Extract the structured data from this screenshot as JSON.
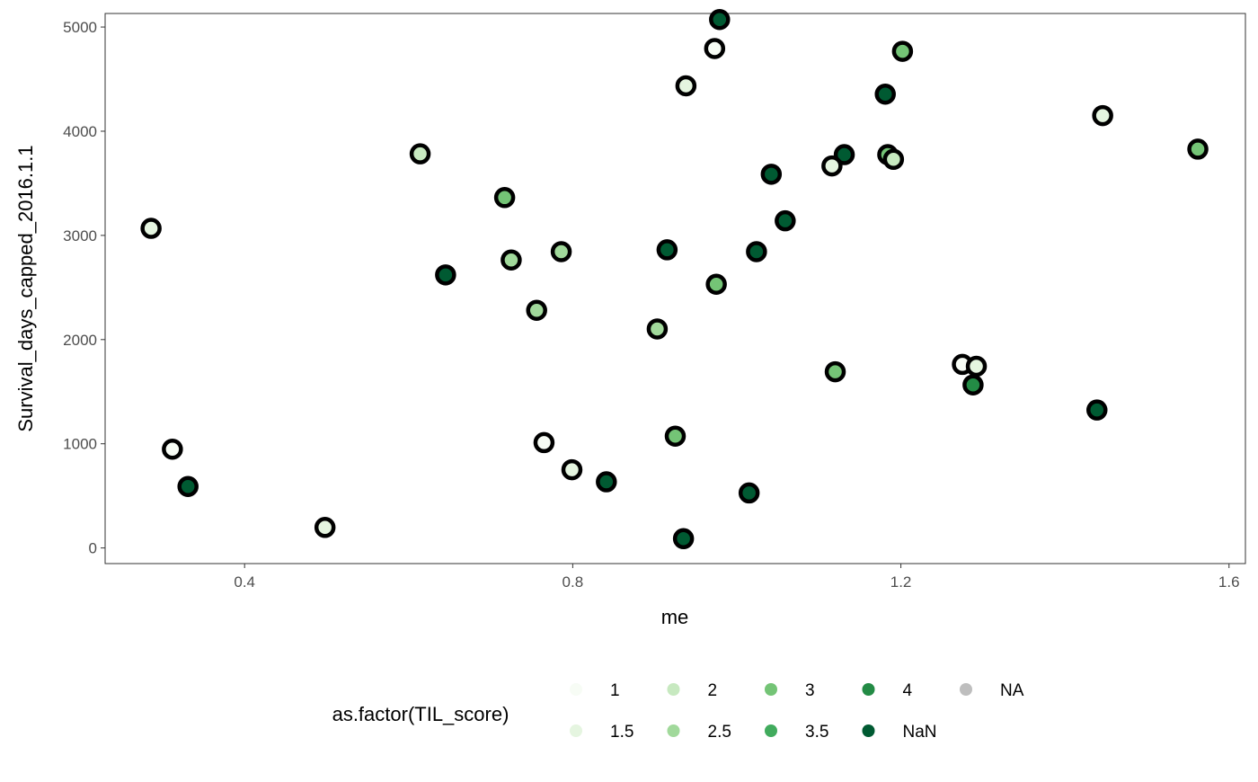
{
  "chart_data": {
    "type": "scatter",
    "xlabel": "me",
    "ylabel": "Survival_days_capped_2016.1.1",
    "xlim": [
      0.23,
      1.62
    ],
    "ylim": [
      -150,
      5130
    ],
    "xticks": [
      0.4,
      0.8,
      1.2,
      1.6
    ],
    "xtick_labels": [
      "0.4",
      "0.8",
      "1.2",
      "1.6"
    ],
    "yticks": [
      0,
      1000,
      2000,
      3000,
      4000,
      5000
    ],
    "ytick_labels": [
      "0",
      "1000",
      "2000",
      "3000",
      "4000",
      "5000"
    ],
    "grid": false,
    "legend": {
      "title": "as.factor(TIL_score)",
      "placement": "bottom",
      "entries": [
        {
          "label": "1",
          "color": "#F7FCF5"
        },
        {
          "label": "1.5",
          "color": "#E5F5E0"
        },
        {
          "label": "2",
          "color": "#C7E9C0"
        },
        {
          "label": "2.5",
          "color": "#A1D99B"
        },
        {
          "label": "3",
          "color": "#74C476"
        },
        {
          "label": "3.5",
          "color": "#41AB5D"
        },
        {
          "label": "4",
          "color": "#238B45"
        },
        {
          "label": "NaN",
          "color": "#005A32"
        },
        {
          "label": "NA",
          "color": "#BEBEBE"
        }
      ]
    },
    "points": [
      {
        "x": 0.286,
        "y": 3068,
        "g": "1.5"
      },
      {
        "x": 0.312,
        "y": 948,
        "g": "1"
      },
      {
        "x": 0.331,
        "y": 590,
        "g": "NaN"
      },
      {
        "x": 0.498,
        "y": 197,
        "g": "1.5"
      },
      {
        "x": 0.614,
        "y": 3783,
        "g": "2"
      },
      {
        "x": 0.645,
        "y": 2621,
        "g": "NaN"
      },
      {
        "x": 0.717,
        "y": 3363,
        "g": "3"
      },
      {
        "x": 0.725,
        "y": 2764,
        "g": "2.5"
      },
      {
        "x": 0.756,
        "y": 2281,
        "g": "2.5"
      },
      {
        "x": 0.765,
        "y": 1011,
        "g": "1"
      },
      {
        "x": 0.786,
        "y": 2844,
        "g": "2.5"
      },
      {
        "x": 0.799,
        "y": 751,
        "g": "1.5"
      },
      {
        "x": 0.841,
        "y": 635,
        "g": "NaN"
      },
      {
        "x": 0.903,
        "y": 2102,
        "g": "2.5"
      },
      {
        "x": 0.915,
        "y": 2862,
        "g": "NaN"
      },
      {
        "x": 0.925,
        "y": 1073,
        "g": "3"
      },
      {
        "x": 0.935,
        "y": 89,
        "g": "NaN"
      },
      {
        "x": 0.938,
        "y": 4436,
        "g": "1.5"
      },
      {
        "x": 0.973,
        "y": 4794,
        "g": "1"
      },
      {
        "x": 0.979,
        "y": 5072,
        "g": "NaN"
      },
      {
        "x": 0.975,
        "y": 2531,
        "g": "3"
      },
      {
        "x": 1.015,
        "y": 528,
        "g": "NaN"
      },
      {
        "x": 1.024,
        "y": 2844,
        "g": "NaN"
      },
      {
        "x": 1.042,
        "y": 3587,
        "g": "NaN"
      },
      {
        "x": 1.059,
        "y": 3140,
        "g": "NaN"
      },
      {
        "x": 1.131,
        "y": 3775,
        "g": "NaN"
      },
      {
        "x": 1.116,
        "y": 3667,
        "g": "1.5"
      },
      {
        "x": 1.12,
        "y": 1691,
        "g": "3"
      },
      {
        "x": 1.181,
        "y": 4356,
        "g": "NaN"
      },
      {
        "x": 1.184,
        "y": 3775,
        "g": "3"
      },
      {
        "x": 1.191,
        "y": 3730,
        "g": "2"
      },
      {
        "x": 1.202,
        "y": 4767,
        "g": "3"
      },
      {
        "x": 1.288,
        "y": 1565,
        "g": "4"
      },
      {
        "x": 1.275,
        "y": 1762,
        "g": "1"
      },
      {
        "x": 1.292,
        "y": 1744,
        "g": "1.5"
      },
      {
        "x": 1.439,
        "y": 1324,
        "g": "NaN"
      },
      {
        "x": 1.446,
        "y": 4150,
        "g": "1.5"
      },
      {
        "x": 1.562,
        "y": 3828,
        "g": "3"
      }
    ]
  }
}
